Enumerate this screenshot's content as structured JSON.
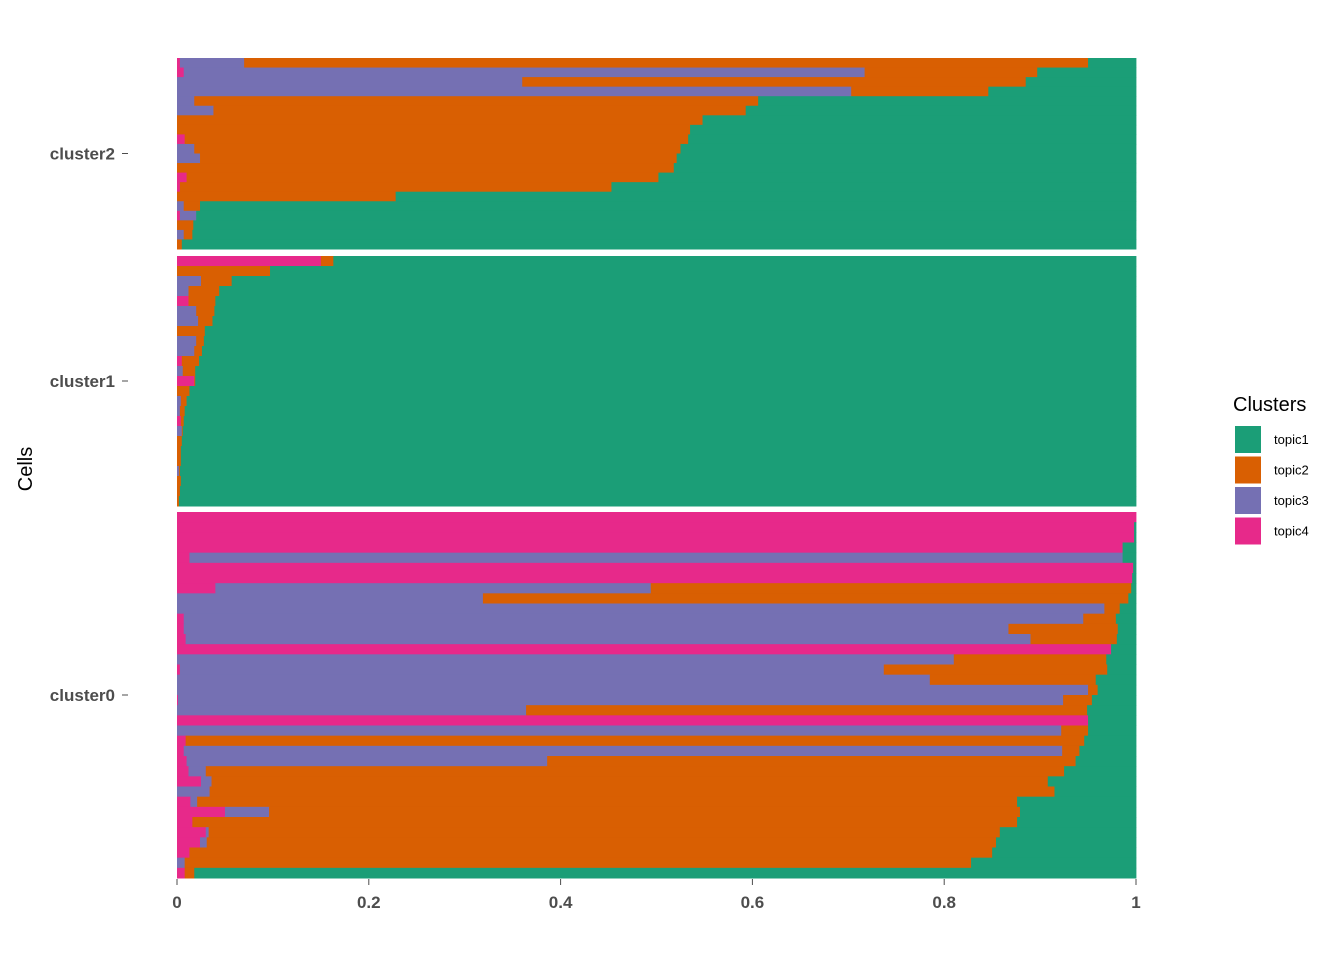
{
  "chart_data": {
    "type": "bar",
    "orientation": "horizontal-stacked",
    "title": "",
    "xlabel": "",
    "ylabel": "Cells",
    "xlim": [
      0,
      1
    ],
    "x_ticks": [
      "0",
      "0.2",
      "0.4",
      "0.6",
      "0.8",
      "1"
    ],
    "grid": false,
    "legend": {
      "title": "Clusters",
      "position": "right",
      "entries": [
        "topic1",
        "topic2",
        "topic3",
        "topic4"
      ]
    },
    "colors": {
      "topic1": "#1b9e77",
      "topic2": "#d95f02",
      "topic3": "#7570b3",
      "topic4": "#e7298a"
    },
    "series_order": [
      "topic4",
      "topic3",
      "topic2",
      "topic1"
    ],
    "facets": [
      {
        "name": "cluster2",
        "cells": [
          [
            0.003,
            0.067,
            0.88,
            0.05
          ],
          [
            0.007,
            0.71,
            0.18,
            0.103
          ],
          [
            0.0,
            0.36,
            0.525,
            0.115
          ],
          [
            0.0,
            0.703,
            0.143,
            0.154
          ],
          [
            0.0,
            0.018,
            0.588,
            0.394
          ],
          [
            0.0,
            0.038,
            0.555,
            0.407
          ],
          [
            0.0,
            0.0,
            0.548,
            0.452
          ],
          [
            0.0,
            0.0,
            0.535,
            0.465
          ],
          [
            0.008,
            0.0,
            0.525,
            0.467
          ],
          [
            0.0,
            0.018,
            0.507,
            0.475
          ],
          [
            0.0,
            0.024,
            0.497,
            0.479
          ],
          [
            0.0,
            0.0,
            0.518,
            0.482
          ],
          [
            0.01,
            0.0,
            0.492,
            0.498
          ],
          [
            0.003,
            0.0,
            0.45,
            0.547
          ],
          [
            0.0,
            0.0,
            0.228,
            0.772
          ],
          [
            0.0,
            0.007,
            0.017,
            0.976
          ],
          [
            0.003,
            0.017,
            0.0,
            0.98
          ],
          [
            0.0,
            0.0,
            0.017,
            0.983
          ],
          [
            0.0,
            0.007,
            0.009,
            0.984
          ],
          [
            0.0,
            0.0,
            0.005,
            0.995
          ]
        ]
      },
      {
        "name": "cluster1",
        "cells": [
          [
            0.15,
            0.0,
            0.013,
            0.837
          ],
          [
            0.0,
            0.0,
            0.097,
            0.903
          ],
          [
            0.0,
            0.025,
            0.032,
            0.943
          ],
          [
            0.0,
            0.012,
            0.032,
            0.956
          ],
          [
            0.012,
            0.0,
            0.028,
            0.96
          ],
          [
            0.0,
            0.02,
            0.019,
            0.961
          ],
          [
            0.0,
            0.022,
            0.015,
            0.963
          ],
          [
            0.0,
            0.0,
            0.029,
            0.971
          ],
          [
            0.0,
            0.02,
            0.008,
            0.972
          ],
          [
            0.0,
            0.018,
            0.008,
            0.974
          ],
          [
            0.005,
            0.0,
            0.018,
            0.977
          ],
          [
            0.0,
            0.006,
            0.013,
            0.981
          ],
          [
            0.018,
            0.0,
            0.001,
            0.981
          ],
          [
            0.0,
            0.0,
            0.013,
            0.987
          ],
          [
            0.0,
            0.004,
            0.006,
            0.99
          ],
          [
            0.0,
            0.003,
            0.005,
            0.992
          ],
          [
            0.004,
            0.0,
            0.003,
            0.993
          ],
          [
            0.0,
            0.005,
            0.001,
            0.994
          ],
          [
            0.0,
            0.0,
            0.005,
            0.995
          ],
          [
            0.0,
            0.0,
            0.004,
            0.996
          ],
          [
            0.0,
            0.0,
            0.004,
            0.996
          ],
          [
            0.0,
            0.002,
            0.001,
            0.997
          ],
          [
            0.0,
            0.0,
            0.004,
            0.996
          ],
          [
            0.0,
            0.0,
            0.003,
            0.997
          ],
          [
            0.0,
            0.0,
            0.002,
            0.998
          ]
        ]
      },
      {
        "name": "cluster0",
        "cells": [
          [
            1.0,
            0.0,
            0.0,
            0.0
          ],
          [
            0.998,
            0.0,
            0.0,
            0.002
          ],
          [
            0.998,
            0.0,
            0.0,
            0.002
          ],
          [
            0.986,
            0.0,
            0.0,
            0.014
          ],
          [
            0.013,
            0.973,
            0.0,
            0.014
          ],
          [
            0.997,
            0.0,
            0.0,
            0.003
          ],
          [
            0.996,
            0.0,
            0.0,
            0.004
          ],
          [
            0.04,
            0.454,
            0.501,
            0.005
          ],
          [
            0.0,
            0.319,
            0.673,
            0.008
          ],
          [
            0.0,
            0.967,
            0.016,
            0.017
          ],
          [
            0.007,
            0.938,
            0.034,
            0.021
          ],
          [
            0.007,
            0.86,
            0.114,
            0.019
          ],
          [
            0.009,
            0.881,
            0.09,
            0.02
          ],
          [
            0.974,
            0.0,
            0.0,
            0.026
          ],
          [
            0.0,
            0.81,
            0.159,
            0.031
          ],
          [
            0.003,
            0.734,
            0.233,
            0.03
          ],
          [
            0.0,
            0.785,
            0.173,
            0.042
          ],
          [
            0.0,
            0.95,
            0.01,
            0.04
          ],
          [
            0.001,
            0.923,
            0.03,
            0.046
          ],
          [
            0.0,
            0.364,
            0.585,
            0.051
          ],
          [
            0.95,
            0.0,
            0.0,
            0.05
          ],
          [
            0.0,
            0.922,
            0.028,
            0.05
          ],
          [
            0.009,
            0.0,
            0.937,
            0.054
          ],
          [
            0.007,
            0.916,
            0.018,
            0.059
          ],
          [
            0.01,
            0.376,
            0.551,
            0.063
          ],
          [
            0.012,
            0.018,
            0.895,
            0.075
          ],
          [
            0.025,
            0.011,
            0.872,
            0.092
          ],
          [
            0.0,
            0.034,
            0.881,
            0.085
          ],
          [
            0.014,
            0.007,
            0.855,
            0.124
          ],
          [
            0.05,
            0.046,
            0.783,
            0.121
          ],
          [
            0.016,
            0.0,
            0.86,
            0.124
          ],
          [
            0.03,
            0.003,
            0.825,
            0.142
          ],
          [
            0.024,
            0.007,
            0.823,
            0.146
          ],
          [
            0.013,
            0.0,
            0.837,
            0.15
          ],
          [
            0.0,
            0.008,
            0.82,
            0.172
          ],
          [
            0.008,
            0.0,
            0.01,
            0.982
          ]
        ]
      }
    ]
  }
}
